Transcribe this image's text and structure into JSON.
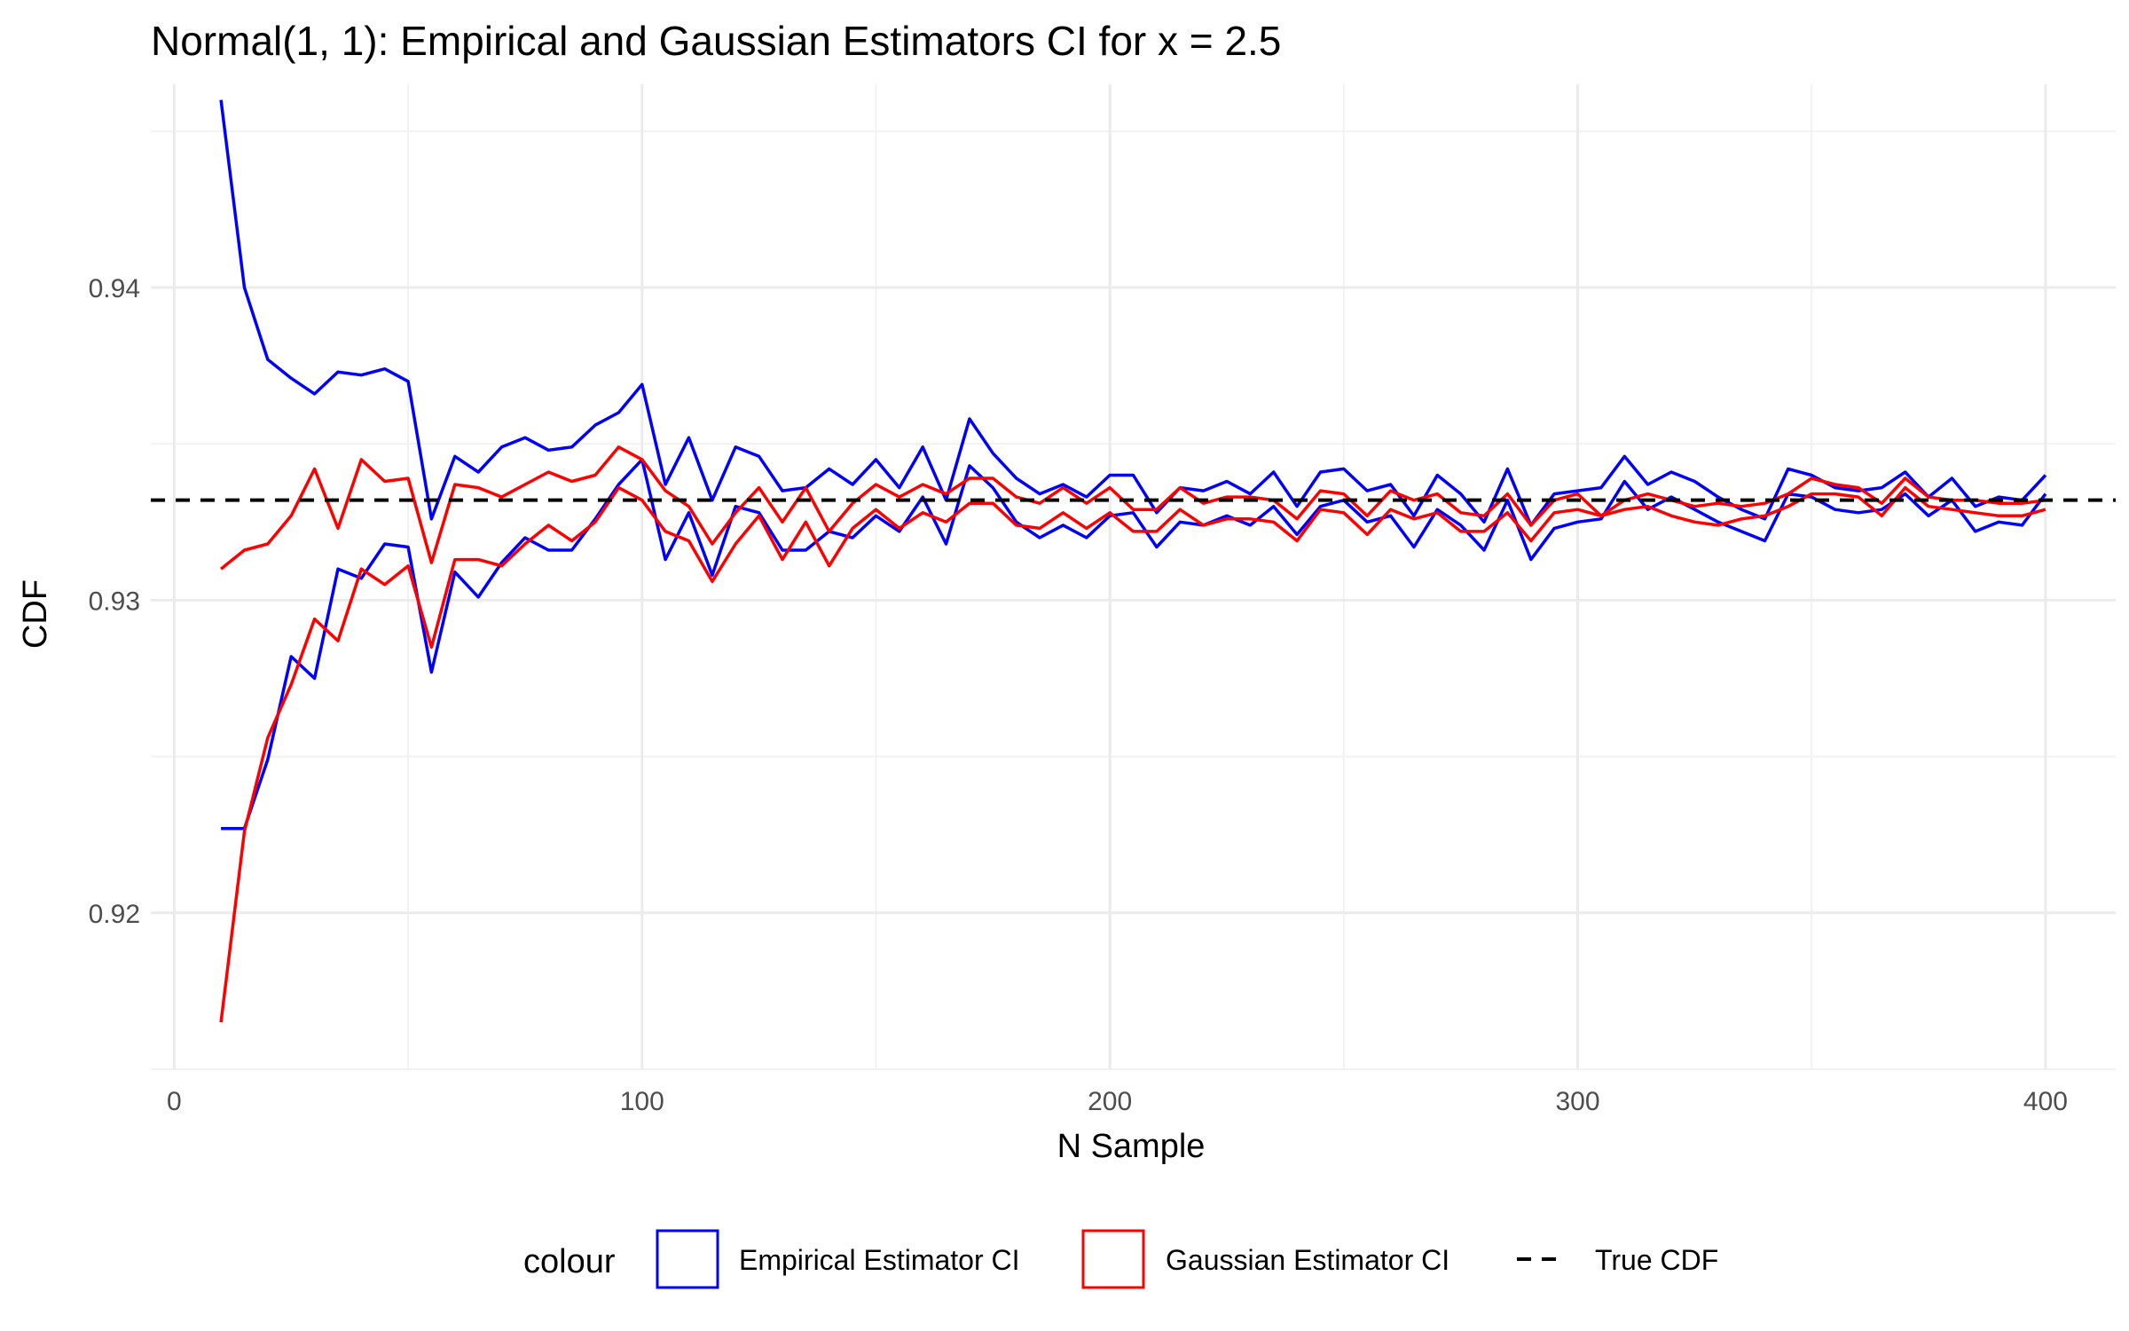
{
  "chart_data": {
    "type": "line",
    "title": "Normal(1, 1): Empirical and Gaussian Estimators CI for x = 2.5",
    "xlabel": "N Sample",
    "ylabel": "CDF",
    "xlim": [
      -5,
      415
    ],
    "ylim": [
      0.915,
      0.9465
    ],
    "x_ticks": [
      0,
      100,
      200,
      300,
      400
    ],
    "x_tick_labels": [
      "0",
      "100",
      "200",
      "300",
      "400"
    ],
    "y_ticks": [
      0.92,
      0.93,
      0.94
    ],
    "y_tick_labels": [
      "0.92",
      "0.93",
      "0.94"
    ],
    "grid": true,
    "legend": {
      "title": "colour",
      "position": "bottom",
      "entries": [
        {
          "label": "Empirical Estimator CI",
          "color": "#0000ff",
          "style": "box"
        },
        {
          "label": "Gaussian Estimator CI",
          "color": "#ff0000",
          "style": "box"
        },
        {
          "label": "True CDF",
          "color": "#000000",
          "style": "dashed"
        }
      ]
    },
    "reference_line": {
      "label": "True CDF",
      "y": 0.9332,
      "color": "#000000",
      "dash": true
    },
    "x": [
      10,
      15,
      20,
      25,
      30,
      35,
      40,
      45,
      50,
      55,
      60,
      65,
      70,
      75,
      80,
      85,
      90,
      95,
      100,
      105,
      110,
      115,
      120,
      125,
      130,
      135,
      140,
      145,
      150,
      155,
      160,
      165,
      170,
      175,
      180,
      185,
      190,
      195,
      200,
      205,
      210,
      215,
      220,
      225,
      230,
      235,
      240,
      245,
      250,
      255,
      260,
      265,
      270,
      275,
      280,
      285,
      290,
      295,
      300,
      305,
      310,
      315,
      320,
      325,
      330,
      335,
      340,
      345,
      350,
      355,
      360,
      365,
      370,
      375,
      380,
      385,
      390,
      395,
      400
    ],
    "series": [
      {
        "name": "Empirical Estimator CI",
        "group": "upper",
        "color": "#0000ff",
        "values": [
          0.946,
          0.94,
          0.9377,
          0.9371,
          0.9366,
          0.9373,
          0.9372,
          0.9374,
          0.937,
          0.9326,
          0.9346,
          0.9341,
          0.9349,
          0.9352,
          0.9348,
          0.9349,
          0.9356,
          0.936,
          0.9369,
          0.9337,
          0.9352,
          0.9332,
          0.9349,
          0.9346,
          0.9335,
          0.9336,
          0.9342,
          0.9337,
          0.9345,
          0.9336,
          0.9349,
          0.9332,
          0.9358,
          0.9347,
          0.9339,
          0.9334,
          0.9337,
          0.9333,
          0.934,
          0.934,
          0.9328,
          0.9336,
          0.9335,
          0.9338,
          0.9334,
          0.9341,
          0.933,
          0.9341,
          0.9342,
          0.9335,
          0.9337,
          0.9327,
          0.934,
          0.9334,
          0.9325,
          0.9342,
          0.9324,
          0.9334,
          0.9335,
          0.9336,
          0.9346,
          0.9337,
          0.9341,
          0.9338,
          0.9333,
          0.9329,
          0.9326,
          0.9342,
          0.934,
          0.9336,
          0.9335,
          0.9336,
          0.9341,
          0.9333,
          0.9339,
          0.933,
          0.9333,
          0.9332,
          0.934
        ]
      },
      {
        "name": "Empirical Estimator CI",
        "group": "lower",
        "color": "#0000ff",
        "values": [
          0.9227,
          0.9227,
          0.9249,
          0.9282,
          0.9275,
          0.931,
          0.9307,
          0.9318,
          0.9317,
          0.9277,
          0.9309,
          0.9301,
          0.9312,
          0.932,
          0.9316,
          0.9316,
          0.9326,
          0.9337,
          0.9345,
          0.9313,
          0.9328,
          0.9308,
          0.933,
          0.9328,
          0.9316,
          0.9316,
          0.9322,
          0.932,
          0.9327,
          0.9322,
          0.9333,
          0.9318,
          0.9343,
          0.9336,
          0.9325,
          0.932,
          0.9324,
          0.932,
          0.9327,
          0.9328,
          0.9317,
          0.9325,
          0.9324,
          0.9327,
          0.9324,
          0.933,
          0.9321,
          0.933,
          0.9332,
          0.9325,
          0.9327,
          0.9317,
          0.9329,
          0.9324,
          0.9316,
          0.9332,
          0.9313,
          0.9323,
          0.9325,
          0.9326,
          0.9338,
          0.9329,
          0.9333,
          0.9329,
          0.9325,
          0.9322,
          0.9319,
          0.9334,
          0.9333,
          0.9329,
          0.9328,
          0.9329,
          0.9334,
          0.9327,
          0.9332,
          0.9322,
          0.9325,
          0.9324,
          0.9334
        ]
      },
      {
        "name": "Gaussian Estimator CI",
        "group": "upper",
        "color": "#ff0000",
        "values": [
          0.931,
          0.9316,
          0.9318,
          0.9327,
          0.9342,
          0.9323,
          0.9345,
          0.9338,
          0.9339,
          0.9312,
          0.9337,
          0.9336,
          0.9333,
          0.9337,
          0.9341,
          0.9338,
          0.934,
          0.9349,
          0.9345,
          0.9335,
          0.933,
          0.9318,
          0.9328,
          0.9336,
          0.9325,
          0.9336,
          0.9322,
          0.9331,
          0.9337,
          0.9333,
          0.9337,
          0.9334,
          0.9339,
          0.9339,
          0.9333,
          0.9331,
          0.9336,
          0.9331,
          0.9336,
          0.9329,
          0.9329,
          0.9336,
          0.9331,
          0.9333,
          0.9333,
          0.9332,
          0.9326,
          0.9335,
          0.9334,
          0.9327,
          0.9335,
          0.9332,
          0.9334,
          0.9328,
          0.9327,
          0.9334,
          0.9324,
          0.9332,
          0.9334,
          0.9327,
          0.9332,
          0.9334,
          0.9332,
          0.933,
          0.9331,
          0.933,
          0.9331,
          0.9334,
          0.9339,
          0.9337,
          0.9336,
          0.9331,
          0.9339,
          0.9333,
          0.9332,
          0.9332,
          0.9331,
          0.9331,
          0.9332
        ]
      },
      {
        "name": "Gaussian Estimator CI",
        "group": "lower",
        "color": "#ff0000",
        "values": [
          0.9165,
          0.9226,
          0.9256,
          0.9273,
          0.9294,
          0.9287,
          0.931,
          0.9305,
          0.9311,
          0.9285,
          0.9313,
          0.9313,
          0.9311,
          0.9318,
          0.9324,
          0.9319,
          0.9325,
          0.9336,
          0.9332,
          0.9322,
          0.9319,
          0.9306,
          0.9318,
          0.9327,
          0.9313,
          0.9325,
          0.9311,
          0.9323,
          0.9329,
          0.9323,
          0.9328,
          0.9325,
          0.9331,
          0.9331,
          0.9324,
          0.9323,
          0.9328,
          0.9323,
          0.9328,
          0.9322,
          0.9322,
          0.9329,
          0.9324,
          0.9326,
          0.9326,
          0.9325,
          0.9319,
          0.9329,
          0.9328,
          0.9321,
          0.9329,
          0.9326,
          0.9328,
          0.9322,
          0.9322,
          0.9328,
          0.9319,
          0.9328,
          0.9329,
          0.9327,
          0.9329,
          0.933,
          0.9327,
          0.9325,
          0.9324,
          0.9326,
          0.9327,
          0.933,
          0.9334,
          0.9334,
          0.9333,
          0.9327,
          0.9336,
          0.933,
          0.9329,
          0.9328,
          0.9327,
          0.9327,
          0.9329
        ]
      }
    ]
  }
}
